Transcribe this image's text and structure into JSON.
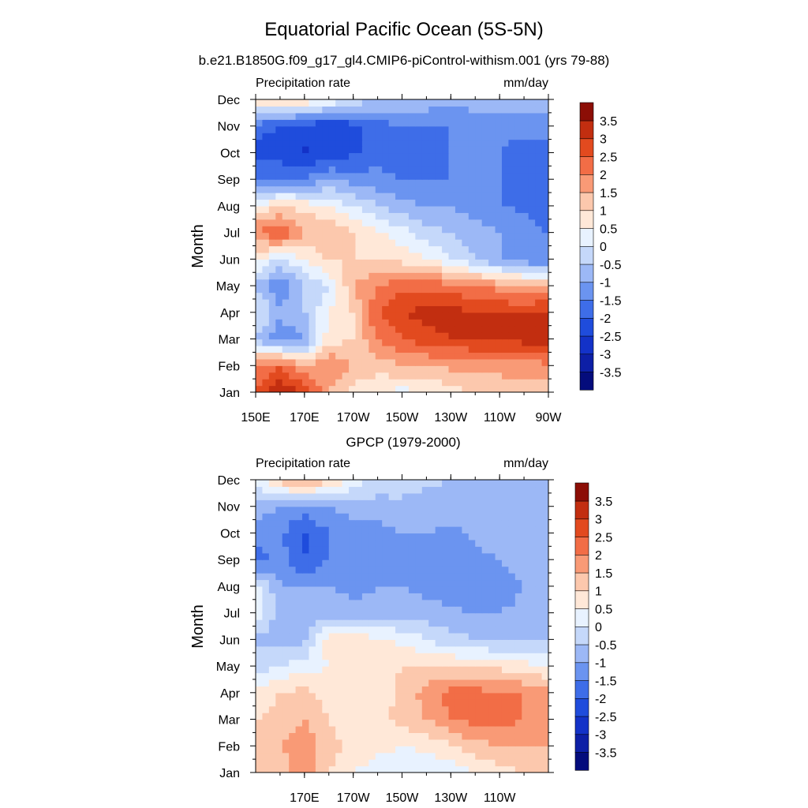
{
  "figure": {
    "title": "Equatorial Pacific Ocean (5S-5N)",
    "subtitle": "b.e21.B1850G.f09_g17_gl4.CMIP6-piControl-withism.001 (yrs 79-88)"
  },
  "colorbar": {
    "levels": [
      -3.5,
      -3,
      -2.5,
      -2,
      -1.5,
      -1,
      -0.5,
      0,
      0.5,
      1,
      1.5,
      2,
      2.5,
      3,
      3.5
    ],
    "labels": [
      "-3.5",
      "-3",
      "-2.5",
      "-2",
      "-1.5",
      "-1",
      "-0.5",
      "0",
      "0.5",
      "1",
      "1.5",
      "2",
      "2.5",
      "3",
      "3.5"
    ],
    "colors": [
      "#040c7c",
      "#0d1fa6",
      "#1332c8",
      "#1f4cdc",
      "#3e6de8",
      "#6b94f0",
      "#9cb8f6",
      "#c5d8fa",
      "#e8f2ff",
      "#ffe8d8",
      "#fcc8ad",
      "#f99a76",
      "#f26d46",
      "#e24a1f",
      "#c22e10",
      "#8c0e06"
    ]
  },
  "chart_data": [
    {
      "type": "heatmap",
      "title": "",
      "left_label": "Precipitation rate",
      "right_label": "mm/day",
      "ylabel": "Month",
      "xlabel": "",
      "x_tick_labels": [
        "150E",
        "170E",
        "170W",
        "150W",
        "130W",
        "110W",
        "90W"
      ],
      "x_range": [
        "150E",
        "90W"
      ],
      "y_tick_labels": [
        "Jan",
        "Feb",
        "Mar",
        "Apr",
        "May",
        "Jun",
        "Jul",
        "Aug",
        "Sep",
        "Oct",
        "Nov",
        "Dec"
      ],
      "x_longitudes": [
        "150E",
        "160E",
        "170E",
        "180",
        "170W",
        "160W",
        "150W",
        "140W",
        "130W",
        "120W",
        "110W",
        "100W",
        "90W"
      ],
      "values": [
        [
          2.5,
          3.5,
          3.0,
          1.5,
          0.8,
          0.5,
          0.3,
          0.5,
          0.8,
          1.0,
          1.0,
          1.2,
          1.3
        ],
        [
          2.0,
          2.5,
          1.5,
          2.0,
          1.5,
          1.2,
          1.5,
          1.5,
          1.6,
          1.7,
          1.8,
          1.8,
          1.8
        ],
        [
          -0.5,
          -1.5,
          -1.0,
          0.8,
          1.0,
          2.0,
          2.5,
          2.8,
          3.0,
          3.0,
          3.0,
          3.2,
          3.5
        ],
        [
          0.2,
          -0.8,
          -0.5,
          0.5,
          1.0,
          2.5,
          3.0,
          3.2,
          3.2,
          3.0,
          3.0,
          3.0,
          3.2
        ],
        [
          -0.5,
          -1.5,
          -0.5,
          0.0,
          1.5,
          2.0,
          2.3,
          2.3,
          2.2,
          2.0,
          1.8,
          1.5,
          1.5
        ],
        [
          0.5,
          0.0,
          0.5,
          1.0,
          1.0,
          1.0,
          0.8,
          0.5,
          0.0,
          -0.5,
          -1.0,
          -1.3,
          -1.5
        ],
        [
          2.0,
          2.5,
          1.5,
          1.5,
          1.0,
          0.6,
          0.2,
          -0.3,
          -0.5,
          -0.8,
          -1.0,
          -1.3,
          -1.5
        ],
        [
          0.5,
          1.0,
          0.8,
          0.5,
          0.0,
          -0.5,
          -0.8,
          -1.0,
          -1.0,
          -1.2,
          -1.5,
          -1.6,
          -1.8
        ],
        [
          -1.5,
          -1.5,
          -1.5,
          -1.0,
          -1.2,
          -1.3,
          -1.5,
          -1.5,
          -1.5,
          -1.3,
          -1.5,
          -1.8,
          -1.8
        ],
        [
          -2.2,
          -2.3,
          -2.6,
          -2.3,
          -2.1,
          -1.8,
          -1.8,
          -1.8,
          -1.5,
          -1.2,
          -1.5,
          -1.8,
          -1.6
        ],
        [
          -1.8,
          -2.0,
          -2.3,
          -2.5,
          -2.2,
          -1.8,
          -1.5,
          -1.5,
          -1.5,
          -1.3,
          -1.3,
          -1.3,
          -1.3
        ],
        [
          0.8,
          1.2,
          1.0,
          0.5,
          -0.2,
          -0.5,
          -0.6,
          -0.7,
          -0.8,
          -0.8,
          -0.8,
          -0.8,
          -0.8
        ]
      ]
    },
    {
      "type": "heatmap",
      "title": "GPCP (1979-2000)",
      "left_label": "Precipitation rate",
      "right_label": "mm/day",
      "ylabel": "Month",
      "xlabel": "",
      "x_tick_labels": [
        "170E",
        "170W",
        "150W",
        "130W",
        "110W"
      ],
      "x_range": [
        "150E",
        "90W"
      ],
      "y_tick_labels": [
        "Jan",
        "Feb",
        "Mar",
        "Apr",
        "May",
        "Jun",
        "Jul",
        "Aug",
        "Sep",
        "Oct",
        "Nov",
        "Dec"
      ],
      "x_longitudes": [
        "150E",
        "160E",
        "170E",
        "180",
        "170W",
        "160W",
        "150W",
        "140W",
        "130W",
        "120W",
        "110W",
        "100W",
        "90W"
      ],
      "values": [
        [
          1.2,
          1.2,
          2.0,
          1.0,
          0.5,
          0.3,
          0.2,
          0.1,
          0.2,
          0.5,
          0.8,
          1.0,
          1.0
        ],
        [
          1.2,
          1.5,
          1.8,
          1.2,
          0.8,
          0.6,
          0.5,
          0.6,
          0.9,
          1.3,
          1.5,
          1.5,
          1.5
        ],
        [
          1.0,
          1.3,
          1.5,
          1.0,
          0.8,
          0.8,
          1.2,
          1.5,
          2.0,
          2.2,
          2.2,
          2.0,
          1.7
        ],
        [
          0.6,
          1.0,
          1.2,
          0.8,
          0.5,
          0.6,
          1.2,
          1.7,
          2.2,
          2.2,
          2.0,
          2.0,
          1.6
        ],
        [
          -0.3,
          0.0,
          0.3,
          0.5,
          0.6,
          0.7,
          1.0,
          1.0,
          1.0,
          1.0,
          0.9,
          0.7,
          0.5
        ],
        [
          -0.6,
          -0.8,
          -0.6,
          0.8,
          0.8,
          0.6,
          0.4,
          0.0,
          -0.3,
          -0.5,
          -0.6,
          -0.6,
          -0.6
        ],
        [
          0.5,
          -0.8,
          -0.8,
          -0.7,
          -0.8,
          -0.8,
          -0.7,
          -0.8,
          -0.9,
          -1.0,
          -1.0,
          -0.9,
          -0.8
        ],
        [
          0.4,
          -1.0,
          -1.0,
          -1.0,
          -1.2,
          -1.0,
          -1.0,
          -1.2,
          -1.3,
          -1.3,
          -1.2,
          -1.0,
          -0.9
        ],
        [
          -1.8,
          -1.3,
          -2.0,
          -1.5,
          -1.2,
          -1.3,
          -1.2,
          -1.3,
          -1.3,
          -1.1,
          -1.0,
          -0.8,
          -0.8
        ],
        [
          -1.2,
          -1.4,
          -2.1,
          -1.5,
          -1.3,
          -1.2,
          -1.0,
          -1.0,
          -1.1,
          -0.9,
          -0.9,
          -0.8,
          -0.8
        ],
        [
          -0.8,
          -1.0,
          -1.2,
          -1.0,
          -0.8,
          -0.7,
          -0.6,
          -0.7,
          -0.8,
          -0.7,
          -0.7,
          -0.7,
          -0.7
        ],
        [
          0.3,
          1.2,
          1.8,
          1.2,
          0.3,
          -0.2,
          -0.3,
          -0.4,
          -0.5,
          -0.5,
          -0.6,
          -0.6,
          -0.6
        ]
      ]
    }
  ]
}
